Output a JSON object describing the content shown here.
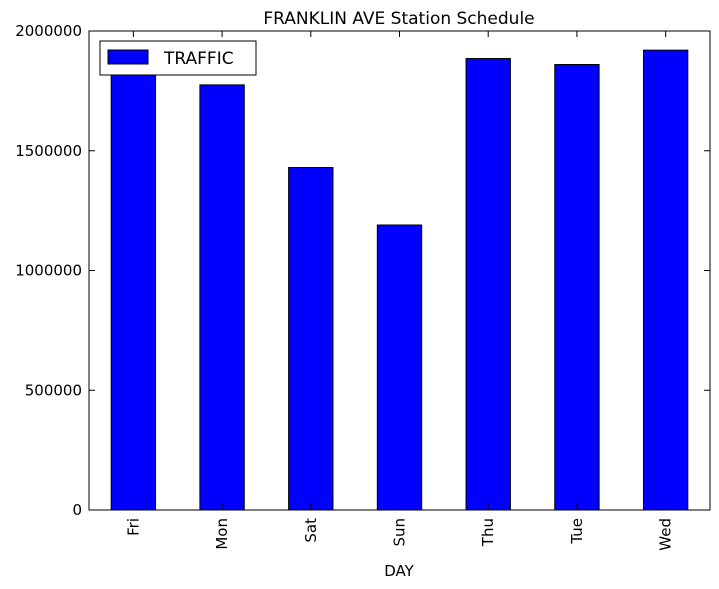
{
  "colors": {
    "bar_fill": "#0000ff",
    "bar_stroke": "#000000",
    "background": "#ffffff",
    "axes": "#000000"
  },
  "chart_data": {
    "type": "bar",
    "title": "FRANKLIN AVE Station Schedule",
    "xlabel": "DAY",
    "ylabel": "",
    "categories": [
      "Fri",
      "Mon",
      "Sat",
      "Sun",
      "Thu",
      "Tue",
      "Wed"
    ],
    "series": [
      {
        "name": "TRAFFIC",
        "values": [
          1820000,
          1775000,
          1430000,
          1190000,
          1885000,
          1860000,
          1920000
        ]
      }
    ],
    "ylim": [
      0,
      2000000
    ],
    "yticks": [
      "0",
      "500000",
      "1000000",
      "1500000",
      "2000000"
    ],
    "ytick_values": [
      0,
      500000,
      1000000,
      1500000,
      2000000
    ],
    "legend": "top-left",
    "grid": false
  }
}
